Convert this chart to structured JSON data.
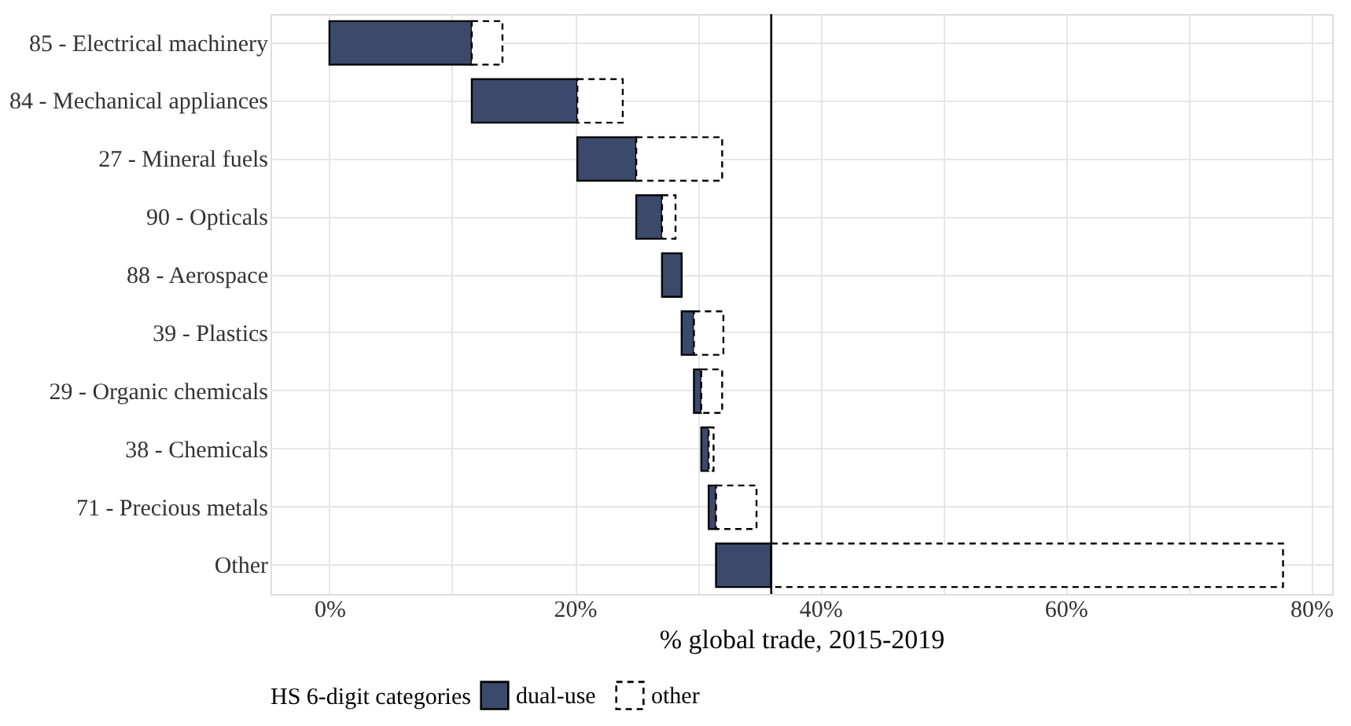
{
  "chart_data": {
    "type": "bar",
    "orientation": "horizontal",
    "xlabel": "% global trade, 2015-2019",
    "legend_title": "HS 6-digit categories",
    "legend": "bottom",
    "grid": true,
    "categories": [
      "85 - Electrical machinery",
      "84 - Mechanical appliances",
      "27 - Mineral fuels",
      "90 - Opticals",
      "88 - Aerospace",
      "39 - Plastics",
      "29 - Organic chemicals",
      "38 - Chemicals",
      "71 - Precious metals",
      "Other"
    ],
    "series": [
      {
        "name": "dual-use",
        "color": "#3b4a6b",
        "line_style": "solid",
        "base": [
          0,
          11.6,
          20.2,
          25.0,
          27.1,
          28.7,
          29.7,
          30.3,
          30.9,
          31.5
        ],
        "values": [
          11.6,
          8.6,
          4.8,
          2.1,
          1.6,
          1.0,
          0.6,
          0.6,
          0.6,
          4.5
        ]
      },
      {
        "name": "other",
        "color": "#ffffff",
        "line_style": "dashed",
        "base": [
          11.6,
          20.2,
          25.0,
          27.1,
          null,
          29.7,
          30.3,
          30.9,
          31.5,
          36.0
        ],
        "values": [
          2.5,
          3.7,
          7.0,
          1.1,
          null,
          2.4,
          1.7,
          0.4,
          3.3,
          41.7
        ]
      }
    ],
    "xlim": [
      -4.8,
      81.7
    ],
    "xticks": [
      {
        "value": 0,
        "label": "0%"
      },
      {
        "value": 10,
        "label": null
      },
      {
        "value": 20,
        "label": "20%"
      },
      {
        "value": 30,
        "label": null
      },
      {
        "value": 40,
        "label": "40%"
      },
      {
        "value": 50,
        "label": null
      },
      {
        "value": 60,
        "label": "60%"
      },
      {
        "value": 70,
        "label": null
      },
      {
        "value": 80,
        "label": "80%"
      }
    ],
    "ref_lines": [
      {
        "axis": "x",
        "value": 36.0,
        "label": null,
        "color": "#000000"
      }
    ]
  }
}
